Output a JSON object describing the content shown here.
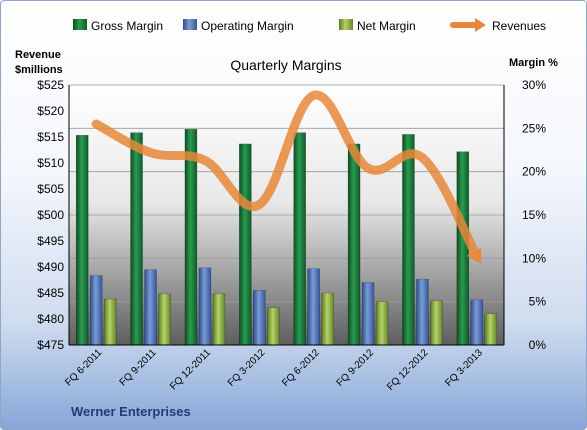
{
  "chart_data": {
    "type": "bar",
    "title": "Quarterly Margins",
    "company": "Werner Enterprises",
    "categories": [
      "FQ 6-2011",
      "FQ 9-2011",
      "FQ 12-2011",
      "FQ 3-2012",
      "FQ 6-2012",
      "FQ 9-2012",
      "FQ 12-2012",
      "FQ 3-2013"
    ],
    "left_axis": {
      "label_line1": "Revenue",
      "label_line2": "$millions",
      "min": 475,
      "max": 525,
      "step": 5,
      "ticks": [
        "$525",
        "$520",
        "$515",
        "$510",
        "$505",
        "$500",
        "$495",
        "$490",
        "$485",
        "$480",
        "$475"
      ]
    },
    "right_axis": {
      "label": "Margin %",
      "min": 0,
      "max": 30,
      "step": 5,
      "ticks": [
        "30%",
        "25%",
        "20%",
        "15%",
        "10%",
        "5%",
        "0%"
      ]
    },
    "series": [
      {
        "name": "Gross Margin",
        "type": "bar",
        "axis": "right",
        "color": "#1a7a3c",
        "values": [
          24.2,
          24.5,
          24.9,
          23.2,
          24.5,
          23.2,
          24.3,
          22.3
        ]
      },
      {
        "name": "Operating Margin",
        "type": "bar",
        "axis": "right",
        "color": "#4a6fb5",
        "values": [
          8.0,
          8.7,
          8.9,
          6.3,
          8.8,
          7.2,
          7.6,
          5.2
        ]
      },
      {
        "name": "Net Margin",
        "type": "bar",
        "axis": "right",
        "color": "#8fae4a",
        "values": [
          5.3,
          5.9,
          5.9,
          4.3,
          6.0,
          5.0,
          5.1,
          3.6
        ]
      },
      {
        "name": "Revenues",
        "type": "line",
        "axis": "left",
        "color": "#e8873a",
        "values": [
          517.5,
          512.0,
          510.5,
          502.0,
          523.0,
          509.0,
          511.0,
          492.0
        ]
      }
    ],
    "legend": {
      "placement": "top"
    },
    "grid": true
  }
}
